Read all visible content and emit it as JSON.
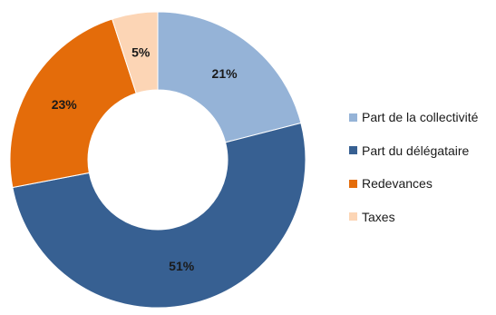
{
  "chart_data": {
    "type": "pie",
    "donut": true,
    "title": "",
    "legend_position": "right",
    "slices": [
      {
        "name": "Part de la collectivité",
        "value": 21,
        "label": "21%",
        "color": "#95b3d7"
      },
      {
        "name": "Part du délégataire",
        "value": 51,
        "label": "51%",
        "color": "#376092"
      },
      {
        "name": "Redevances",
        "value": 23,
        "label": "23%",
        "color": "#e46c0a"
      },
      {
        "name": "Taxes",
        "value": 5,
        "label": "5%",
        "color": "#fcd5b5"
      }
    ]
  }
}
